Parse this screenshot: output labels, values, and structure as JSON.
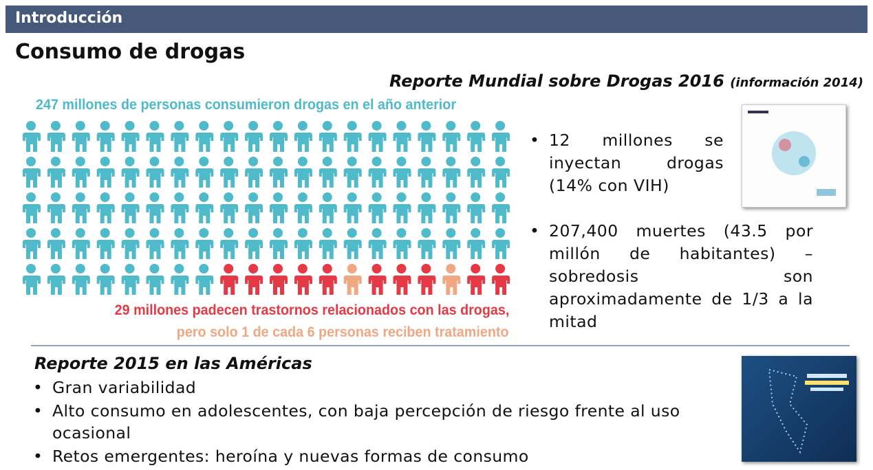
{
  "header": {
    "title": "Introducción"
  },
  "title": "Consumo de drogas",
  "subtitle": {
    "main": "Reporte Mundial sobre Drogas 2016",
    "note": "(información 2014)"
  },
  "pictogram": {
    "top_label": "247 millones de personas consumieron drogas en el año anterior",
    "bottom_label_1": "29 millones padecen trastornos relacionados con las drogas,",
    "bottom_label_2": "pero solo 1 de cada 6 personas reciben tratamiento"
  },
  "world_bullets": [
    "12 millones se inyectan drogas (14% con VIH)",
    "207,400 muertes (43.5 por millón de habitantes) – sobredosis son aproximadamente de 1/3 a la mitad"
  ],
  "americas": {
    "title": "Reporte 2015 en las Américas",
    "bullets": [
      "Gran variabilidad",
      "Alto consumo en adolescentes, con baja percepción de riesgo frente al uso ocasional",
      "Retos emergentes: heroína y nuevas formas de consumo"
    ]
  }
}
